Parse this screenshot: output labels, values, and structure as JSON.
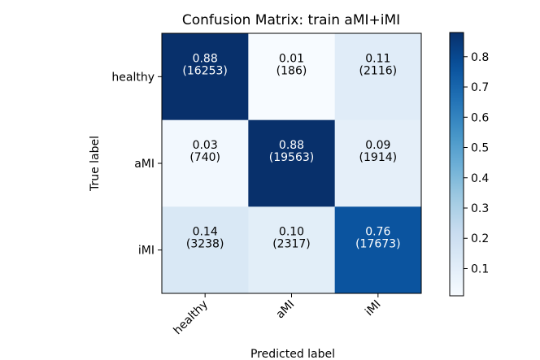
{
  "chart_data": {
    "type": "heatmap",
    "title": "Confusion Matrix: train aMI+iMI",
    "xlabel": "Predicted label",
    "ylabel": "True label",
    "x_categories": [
      "healthy",
      "aMI",
      "iMI"
    ],
    "y_categories": [
      "healthy",
      "aMI",
      "iMI"
    ],
    "values": [
      [
        0.88,
        0.01,
        0.11
      ],
      [
        0.03,
        0.88,
        0.09
      ],
      [
        0.14,
        0.1,
        0.76
      ]
    ],
    "counts": [
      [
        16253,
        186,
        2116
      ],
      [
        740,
        19563,
        1914
      ],
      [
        3238,
        2317,
        17673
      ]
    ],
    "cell_labels": [
      [
        "0.88",
        "0.01",
        "0.11"
      ],
      [
        "0.03",
        "0.88",
        "0.09"
      ],
      [
        "0.14",
        "0.10",
        "0.76"
      ]
    ],
    "count_labels": [
      [
        "(16253)",
        "(186)",
        "(2116)"
      ],
      [
        "(740)",
        "(19563)",
        "(1914)"
      ],
      [
        "(3238)",
        "(2317)",
        "(17673)"
      ]
    ],
    "colorbar": {
      "colormap": "Blues",
      "vmin": 0.01,
      "vmax": 0.88,
      "ticks": [
        0.1,
        0.2,
        0.3,
        0.4,
        0.5,
        0.6,
        0.7,
        0.8
      ],
      "tick_labels": [
        "0.1",
        "0.2",
        "0.3",
        "0.4",
        "0.5",
        "0.6",
        "0.7",
        "0.8"
      ]
    },
    "text_color_threshold": 0.44,
    "grid": false
  }
}
